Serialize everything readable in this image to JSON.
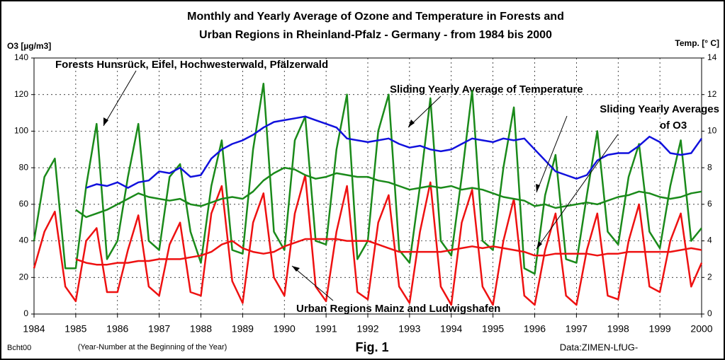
{
  "chart_data": {
    "type": "line",
    "title": [
      "Monthly and Yearly Average of Ozone  and Temperature in Forests and",
      "Urban Regions in Rheinland-Pfalz - Germany - from  1984 bis 2000"
    ],
    "ylabel": "O3 [µg/m3]",
    "y2label": "Temp. [° C]",
    "xlabel": "(Year-Number at the Beginning of the Year)",
    "notes": [
      "Bcht00",
      "Fig. 1",
      "Data:ZIMEN-LfUG-"
    ],
    "annotations": [
      "Forests Hunsrück, Eifel, Hochwesterwald, Pfälzerwald",
      "Sliding Yearly Average of Temperature",
      "Sliding Yearly Averages",
      "of O3",
      "Urban Regions Mainz and Ludwigshafen"
    ],
    "x": [
      1984,
      1984.25,
      1984.5,
      1984.75,
      1985,
      1985.25,
      1985.5,
      1985.75,
      1986,
      1986.25,
      1986.5,
      1986.75,
      1987,
      1987.25,
      1987.5,
      1987.75,
      1988,
      1988.25,
      1988.5,
      1988.75,
      1989,
      1989.25,
      1989.5,
      1989.75,
      1990,
      1990.25,
      1990.5,
      1990.75,
      1991,
      1991.25,
      1991.5,
      1991.75,
      1992,
      1992.25,
      1992.5,
      1992.75,
      1993,
      1993.25,
      1993.5,
      1993.75,
      1994,
      1994.25,
      1994.5,
      1994.75,
      1995,
      1995.25,
      1995.5,
      1995.75,
      1996,
      1996.25,
      1996.5,
      1996.75,
      1997,
      1997.25,
      1997.5,
      1997.75,
      1998,
      1998.25,
      1998.5,
      1998.75,
      1999,
      1999.25,
      1999.5,
      1999.75,
      2000
    ],
    "series": [
      {
        "color": "#1a8a1a",
        "values": [
          40,
          75,
          85,
          25,
          25,
          70,
          104,
          30,
          40,
          75,
          104,
          40,
          35,
          75,
          82,
          45,
          28,
          70,
          95,
          35,
          33,
          90,
          126,
          45,
          35,
          95,
          108,
          40,
          38,
          90,
          120,
          30,
          40,
          100,
          120,
          35,
          28,
          70,
          118,
          40,
          32,
          75,
          122,
          40,
          35,
          80,
          113,
          25,
          22,
          65,
          87,
          30,
          28,
          65,
          100,
          45,
          38,
          75,
          93,
          45,
          36,
          70,
          95,
          40,
          47
        ]
      },
      {
        "color": "#ee1111",
        "values": [
          25,
          45,
          56,
          15,
          7,
          40,
          47,
          12,
          12,
          35,
          54,
          15,
          10,
          38,
          50,
          12,
          10,
          55,
          70,
          18,
          6,
          50,
          66,
          20,
          10,
          55,
          76,
          15,
          7,
          45,
          70,
          12,
          8,
          50,
          65,
          15,
          6,
          45,
          72,
          15,
          5,
          50,
          68,
          15,
          5,
          40,
          63,
          10,
          5,
          35,
          55,
          10,
          5,
          35,
          55,
          10,
          8,
          40,
          60,
          15,
          12,
          40,
          55,
          15,
          28
        ]
      },
      {
        "color": "#1a8a1a",
        "values": [
          null,
          null,
          null,
          null,
          57,
          53,
          55,
          57,
          60,
          63,
          66,
          64,
          63,
          62,
          63,
          60,
          59,
          61,
          63,
          64,
          63,
          67,
          73,
          77,
          80,
          79,
          76,
          74,
          75,
          77,
          76,
          75,
          75,
          73,
          72,
          70,
          68,
          69,
          70,
          69,
          70,
          68,
          69,
          68,
          66,
          64,
          63,
          62,
          59,
          60,
          58,
          59,
          60,
          61,
          60,
          62,
          64,
          65,
          67,
          66,
          64,
          63,
          64,
          66,
          67
        ]
      },
      {
        "color": "#ee1111",
        "values": [
          null,
          null,
          null,
          null,
          30,
          28,
          27,
          27,
          28,
          28,
          29,
          29,
          30,
          30,
          30,
          31,
          32,
          34,
          38,
          40,
          36,
          34,
          33,
          34,
          37,
          39,
          41,
          41,
          41,
          41,
          40,
          40,
          40,
          38,
          36,
          34,
          34,
          34,
          34,
          34,
          35,
          36,
          37,
          36,
          37,
          36,
          35,
          34,
          32,
          32,
          33,
          33,
          33,
          33,
          32,
          33,
          33,
          34,
          34,
          34,
          34,
          34,
          35,
          36,
          35
        ]
      },
      {
        "color": "#1111dd",
        "axis": "y2",
        "values": [
          null,
          null,
          null,
          null,
          null,
          6.9,
          7.1,
          7.0,
          7.2,
          6.9,
          7.2,
          7.3,
          7.8,
          7.7,
          8.0,
          7.5,
          7.6,
          8.5,
          9.0,
          9.3,
          9.5,
          9.8,
          10.2,
          10.5,
          10.6,
          10.7,
          10.8,
          10.6,
          10.4,
          10.2,
          9.6,
          9.5,
          9.4,
          9.5,
          9.6,
          9.3,
          9.1,
          9.2,
          9.0,
          8.9,
          9.0,
          9.3,
          9.6,
          9.5,
          9.4,
          9.6,
          9.5,
          9.6,
          9.0,
          8.4,
          7.8,
          7.6,
          7.4,
          7.6,
          8.4,
          8.7,
          8.8,
          8.8,
          9.2,
          9.7,
          9.4,
          8.8,
          8.7,
          8.8,
          9.6
        ]
      }
    ],
    "xlim": [
      1984,
      2000
    ],
    "xticks": [
      1984,
      1985,
      1986,
      1987,
      1988,
      1989,
      1990,
      1991,
      1992,
      1993,
      1994,
      1995,
      1996,
      1997,
      1998,
      1999,
      2000
    ],
    "ylim": [
      0,
      140
    ],
    "yticks": [
      0,
      20,
      40,
      60,
      80,
      100,
      120,
      140
    ],
    "y2lim": [
      0,
      14
    ],
    "y2ticks": [
      0,
      2,
      4,
      6,
      8,
      10,
      12,
      14
    ],
    "grid": true
  }
}
